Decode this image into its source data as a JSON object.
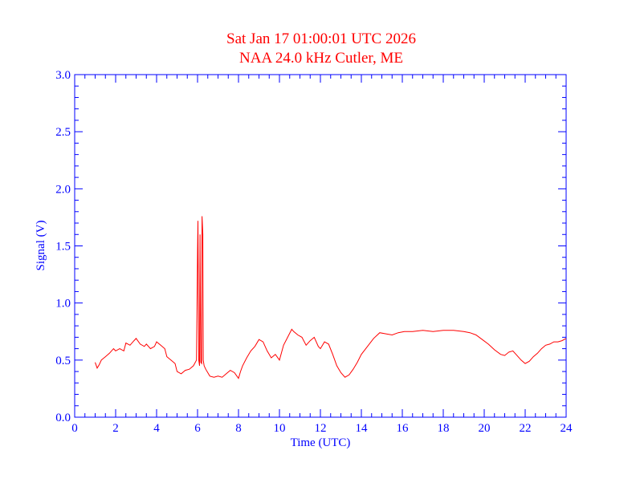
{
  "chart_data": {
    "type": "line",
    "title": "Sat Jan 17 01:00:01 UTC 2026",
    "subtitle": "NAA 24.0 kHz Cutler, ME",
    "xlabel": "Time (UTC)",
    "ylabel": "Signal (V)",
    "xlim": [
      0,
      24
    ],
    "ylim": [
      0.0,
      3.0
    ],
    "xticks": [
      "0",
      "2",
      "4",
      "6",
      "8",
      "10",
      "12",
      "14",
      "16",
      "18",
      "20",
      "22",
      "24"
    ],
    "yticks": [
      "0.0",
      "0.5",
      "1.0",
      "1.5",
      "2.0",
      "2.5",
      "3.0"
    ],
    "grid": false,
    "colors": {
      "axis": "#0000ff",
      "series": "#ff0000",
      "title": "#ff0000"
    },
    "series": [
      {
        "x": [
          1.0,
          1.1,
          1.2,
          1.3,
          1.5,
          1.7,
          1.9,
          2.0,
          2.2,
          2.4,
          2.5,
          2.7,
          2.9,
          3.0,
          3.2,
          3.4,
          3.5,
          3.7,
          3.9,
          4.0,
          4.2,
          4.4,
          4.5,
          4.7,
          4.9,
          5.0,
          5.2,
          5.4,
          5.6,
          5.8,
          5.95,
          6.0,
          6.02,
          6.06,
          6.1,
          6.12,
          6.16,
          6.2,
          6.22,
          6.26,
          6.28,
          6.32,
          6.4,
          6.6,
          6.8,
          7.0,
          7.2,
          7.4,
          7.6,
          7.8,
          8.0,
          8.1,
          8.2,
          8.4,
          8.6,
          8.8,
          9.0,
          9.2,
          9.4,
          9.6,
          9.8,
          10.0,
          10.2,
          10.4,
          10.6,
          10.7,
          10.9,
          11.1,
          11.3,
          11.5,
          11.7,
          11.9,
          12.0,
          12.2,
          12.4,
          12.6,
          12.8,
          13.0,
          13.2,
          13.4,
          13.6,
          13.8,
          14.0,
          14.3,
          14.6,
          14.9,
          15.2,
          15.5,
          15.8,
          16.1,
          16.5,
          17.0,
          17.5,
          18.0,
          18.5,
          19.0,
          19.3,
          19.6,
          19.9,
          20.2,
          20.5,
          20.8,
          21.0,
          21.2,
          21.4,
          21.6,
          21.8,
          22.0,
          22.2,
          22.4,
          22.6,
          22.8,
          23.0,
          23.2,
          23.4,
          23.6,
          23.8,
          24.0
        ],
        "y": [
          0.48,
          0.43,
          0.46,
          0.5,
          0.53,
          0.56,
          0.6,
          0.58,
          0.6,
          0.58,
          0.65,
          0.63,
          0.67,
          0.69,
          0.64,
          0.62,
          0.64,
          0.6,
          0.62,
          0.66,
          0.63,
          0.6,
          0.53,
          0.5,
          0.47,
          0.4,
          0.38,
          0.41,
          0.42,
          0.45,
          0.5,
          1.45,
          1.72,
          0.5,
          0.45,
          1.6,
          0.48,
          0.47,
          1.76,
          1.6,
          0.5,
          0.45,
          0.42,
          0.36,
          0.35,
          0.36,
          0.35,
          0.38,
          0.41,
          0.39,
          0.34,
          0.4,
          0.45,
          0.52,
          0.58,
          0.62,
          0.68,
          0.66,
          0.58,
          0.52,
          0.55,
          0.5,
          0.63,
          0.7,
          0.77,
          0.75,
          0.72,
          0.7,
          0.63,
          0.67,
          0.7,
          0.62,
          0.6,
          0.66,
          0.64,
          0.55,
          0.45,
          0.39,
          0.35,
          0.37,
          0.42,
          0.48,
          0.55,
          0.62,
          0.69,
          0.74,
          0.73,
          0.72,
          0.74,
          0.75,
          0.75,
          0.76,
          0.75,
          0.76,
          0.76,
          0.75,
          0.74,
          0.72,
          0.68,
          0.64,
          0.59,
          0.55,
          0.54,
          0.57,
          0.58,
          0.54,
          0.5,
          0.47,
          0.49,
          0.53,
          0.56,
          0.6,
          0.63,
          0.64,
          0.66,
          0.66,
          0.67,
          0.69
        ]
      }
    ]
  }
}
